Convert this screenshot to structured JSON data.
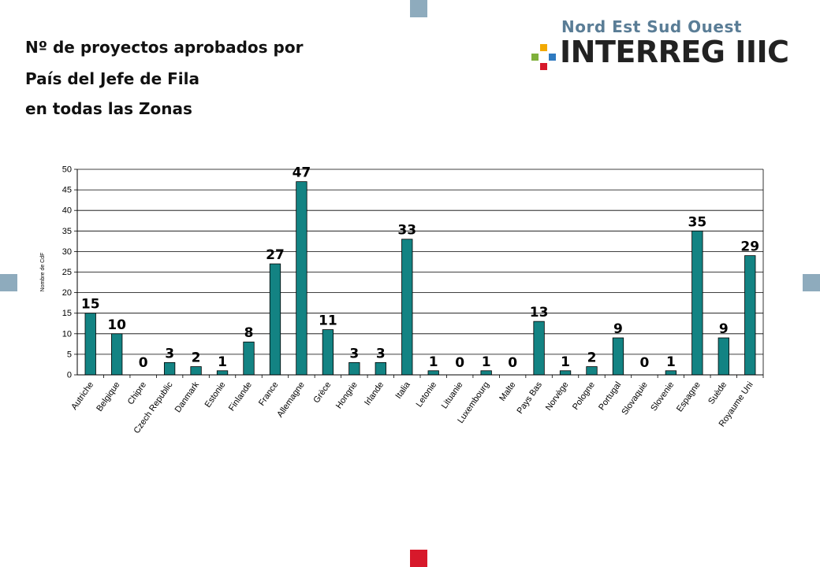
{
  "title_lines": [
    "Nº de proyectos aprobados por",
    "País del Jefe de Fila",
    "en todas las Zonas"
  ],
  "logo": {
    "top_text": "Nord Est Sud Ouest",
    "main_text": "INTERREG IIIC"
  },
  "colors": {
    "bar": "#138383",
    "square_blue": "#8eabbd",
    "square_red": "#d7192b"
  },
  "chart_data": {
    "type": "bar",
    "title": "",
    "ylabel": "Nombre de CdF",
    "xlabel": "",
    "ylim": [
      0,
      50
    ],
    "yticks": [
      0,
      5,
      10,
      15,
      20,
      25,
      30,
      35,
      40,
      45,
      50
    ],
    "grid": true,
    "categories": [
      "Autriche",
      "Belgique",
      "Chipre",
      "Czech Republic",
      "Danmark",
      "Estonie",
      "Finlande",
      "France",
      "Allemagne",
      "Grèce",
      "Hongrie",
      "Irlande",
      "Italia",
      "Letonie",
      "Lituanie",
      "Luxembourg",
      "Malte",
      "Pays Bas",
      "Norvège",
      "Pologne",
      "Portugal",
      "Slovaquie",
      "Slovenie",
      "Espagne",
      "Suède",
      "Royaume Uni"
    ],
    "values": [
      15,
      10,
      0,
      3,
      2,
      1,
      8,
      27,
      47,
      11,
      3,
      3,
      33,
      1,
      0,
      1,
      0,
      13,
      1,
      2,
      9,
      0,
      1,
      35,
      9,
      29
    ]
  }
}
